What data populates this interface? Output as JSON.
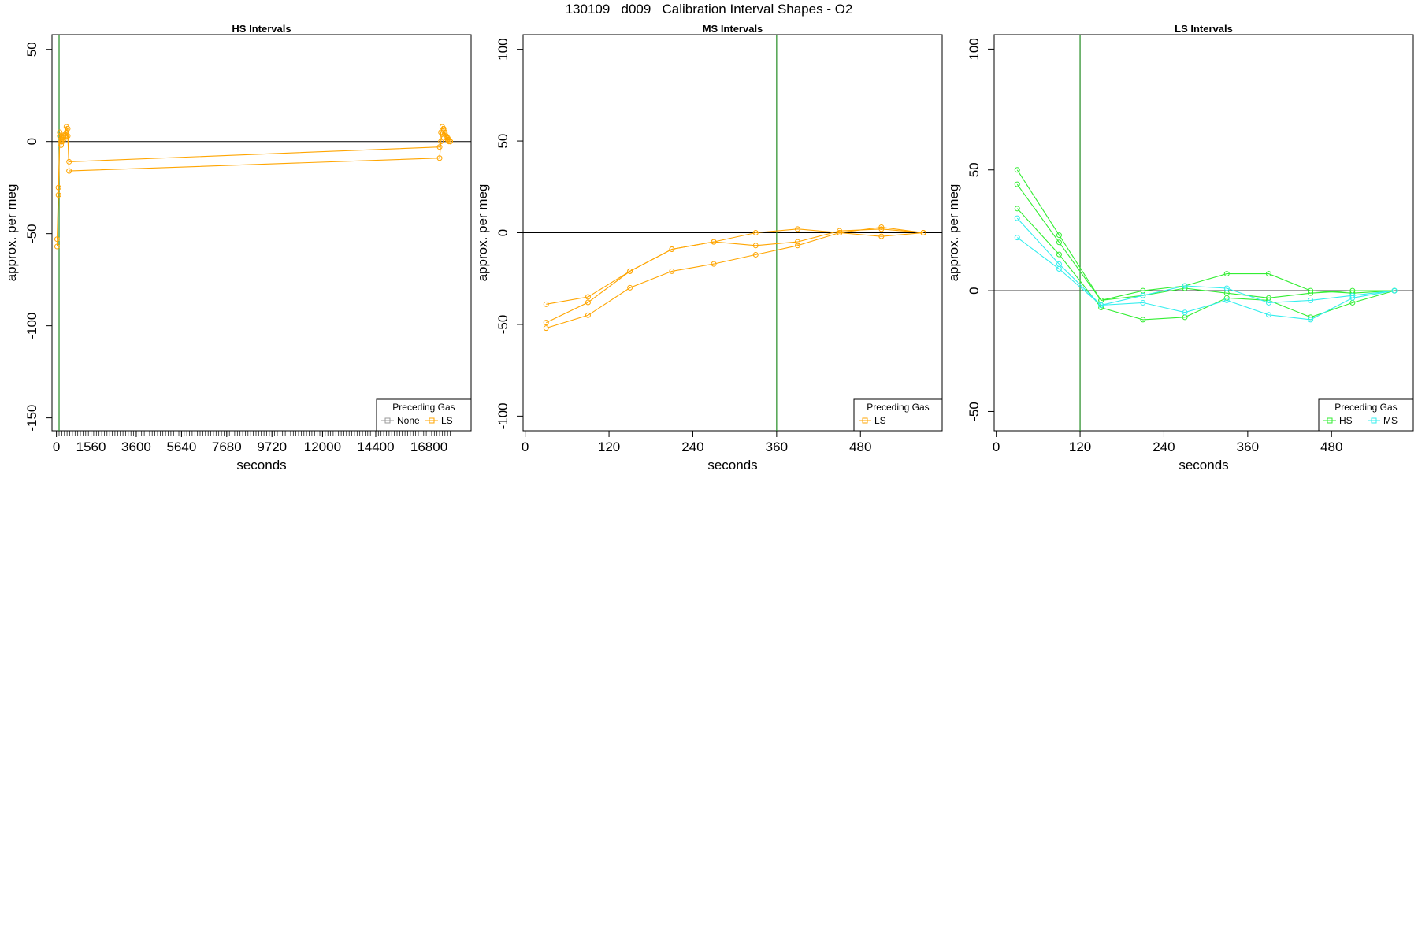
{
  "page_title": "130109   d009   Calibration Interval Shapes - O2",
  "chart_data": [
    {
      "type": "line",
      "title": "HS Intervals",
      "xlabel": "seconds",
      "ylabel": "approx. per meg",
      "xlim": [
        -200,
        18700
      ],
      "ylim": [
        -157,
        58
      ],
      "x_ticks": [
        0,
        1560,
        3600,
        5640,
        7680,
        9720,
        12000,
        14400,
        16800
      ],
      "y_ticks": [
        50,
        0,
        -50,
        -100,
        -150
      ],
      "minor_tick_range": [
        120,
        17800
      ],
      "minor_tick_step": 120,
      "hline": 0,
      "hline_color": "#000000",
      "vline": 120,
      "vline_color": "#228b22",
      "grid": false,
      "legend": {
        "title": "Preceding Gas",
        "position": "bottom-right",
        "items": [
          {
            "label": "None",
            "color": "#999999"
          },
          {
            "label": "LS",
            "color": "#ffa500"
          }
        ]
      },
      "series": [
        {
          "color": "#ffa500",
          "x": [
            30,
            90,
            150,
            210,
            270,
            330,
            390,
            450,
            510,
            570,
            17280,
            17340,
            17400,
            17460,
            17520,
            17580,
            17640,
            17700,
            17760
          ],
          "y": [
            -57,
            -29,
            5,
            -2,
            0,
            1,
            3,
            8,
            7,
            -11,
            -3,
            5,
            8,
            7,
            4,
            2,
            1,
            0,
            0
          ]
        },
        {
          "color": "#ffa500",
          "x": [
            30,
            90,
            150,
            210,
            270,
            330,
            390,
            450,
            510,
            570,
            17280,
            17340,
            17400,
            17460,
            17520,
            17580,
            17640,
            17700,
            17760
          ],
          "y": [
            -53,
            -25,
            3,
            0,
            2,
            3,
            4,
            5,
            3,
            -16,
            -9,
            0,
            4,
            6,
            5,
            3,
            2,
            1,
            0
          ]
        }
      ]
    },
    {
      "type": "line",
      "title": "MS Intervals",
      "xlabel": "seconds",
      "ylabel": "approx. per meg",
      "xlim": [
        -3,
        597
      ],
      "ylim": [
        -108,
        108
      ],
      "x_ticks": [
        0,
        120,
        240,
        360,
        480
      ],
      "y_ticks": [
        100,
        50,
        0,
        -50,
        -100
      ],
      "hline": 0,
      "hline_color": "#000000",
      "vline": 360,
      "vline_color": "#228b22",
      "grid": false,
      "legend": {
        "title": "Preceding Gas",
        "position": "bottom-right",
        "items": [
          {
            "label": "LS",
            "color": "#ffa500"
          }
        ]
      },
      "series": [
        {
          "color": "#ffa500",
          "x": [
            30,
            90,
            150,
            210,
            270,
            330,
            390,
            450,
            510,
            570
          ],
          "y": [
            -39,
            -35,
            -21,
            -9,
            -5,
            0,
            2,
            0,
            3,
            0
          ]
        },
        {
          "color": "#ffa500",
          "x": [
            30,
            90,
            150,
            210,
            270,
            330,
            390,
            450,
            510,
            570
          ],
          "y": [
            -49,
            -38,
            -21,
            -9,
            -5,
            -7,
            -5,
            1,
            2,
            0
          ]
        },
        {
          "color": "#ffa500",
          "x": [
            30,
            90,
            150,
            210,
            270,
            330,
            390,
            450,
            510,
            570
          ],
          "y": [
            -52,
            -45,
            -30,
            -21,
            -17,
            -12,
            -7,
            0,
            -2,
            0
          ]
        }
      ]
    },
    {
      "type": "line",
      "title": "LS Intervals",
      "xlabel": "seconds",
      "ylabel": "approx. per meg",
      "xlim": [
        -3,
        597
      ],
      "ylim": [
        -58,
        106
      ],
      "x_ticks": [
        0,
        120,
        240,
        360,
        480
      ],
      "y_ticks": [
        100,
        50,
        0,
        -50
      ],
      "hline": 0,
      "hline_color": "#000000",
      "vline": 120,
      "vline_color": "#228b22",
      "grid": false,
      "legend": {
        "title": "Preceding Gas",
        "position": "bottom-right",
        "items": [
          {
            "label": "HS",
            "color": "#33ee33"
          },
          {
            "label": "MS",
            "color": "#33eeee"
          }
        ]
      },
      "series": [
        {
          "color": "#33ee33",
          "x": [
            30,
            90,
            150,
            210,
            270,
            330,
            390,
            450,
            510,
            570
          ],
          "y": [
            50,
            23,
            -4,
            0,
            2,
            7,
            7,
            0,
            -1,
            0
          ]
        },
        {
          "color": "#33ee33",
          "x": [
            30,
            90,
            150,
            210,
            270,
            330,
            390,
            450,
            510,
            570
          ],
          "y": [
            44,
            20,
            -4,
            -2,
            1,
            -1,
            -3,
            -1,
            0,
            0
          ]
        },
        {
          "color": "#33ee33",
          "x": [
            30,
            90,
            150,
            210,
            270,
            330,
            390,
            450,
            510,
            570
          ],
          "y": [
            34,
            15,
            -7,
            -12,
            -11,
            -3,
            -4,
            -11,
            -5,
            0
          ]
        },
        {
          "color": "#33eeee",
          "x": [
            30,
            90,
            150,
            210,
            270,
            330,
            390,
            450,
            510,
            570
          ],
          "y": [
            30,
            11,
            -6,
            -2,
            2,
            1,
            -5,
            -4,
            -2,
            0
          ]
        },
        {
          "color": "#33eeee",
          "x": [
            30,
            90,
            150,
            210,
            270,
            330,
            390,
            450,
            510,
            570
          ],
          "y": [
            22,
            9,
            -6,
            -5,
            -9,
            -4,
            -10,
            -12,
            -3,
            0
          ]
        }
      ]
    }
  ]
}
